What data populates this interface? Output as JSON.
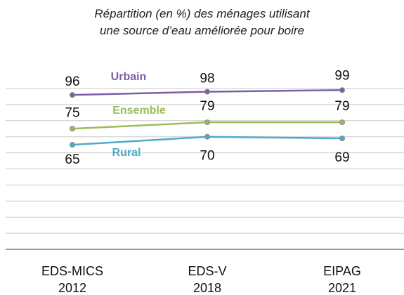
{
  "chart_data": {
    "type": "line",
    "title": "Répartition (en %) des ménages utilisant\nune source d’eau améliorée pour boire",
    "categories": [
      "EDS-MICS\n2012",
      "EDS-V\n2018",
      "EIPAG\n2021"
    ],
    "series": [
      {
        "name": "Urbain",
        "color": "#7b5ea7",
        "values": [
          96,
          98,
          99
        ]
      },
      {
        "name": "Ensemble",
        "color": "#9bbb59",
        "values": [
          75,
          79,
          79
        ]
      },
      {
        "name": "Rural",
        "color": "#4bacc6",
        "values": [
          65,
          70,
          69
        ]
      }
    ],
    "ylim": [
      0,
      100
    ],
    "yticks": [
      0,
      10,
      20,
      30,
      40,
      50,
      60,
      70,
      80,
      90,
      100
    ],
    "grid": true
  }
}
